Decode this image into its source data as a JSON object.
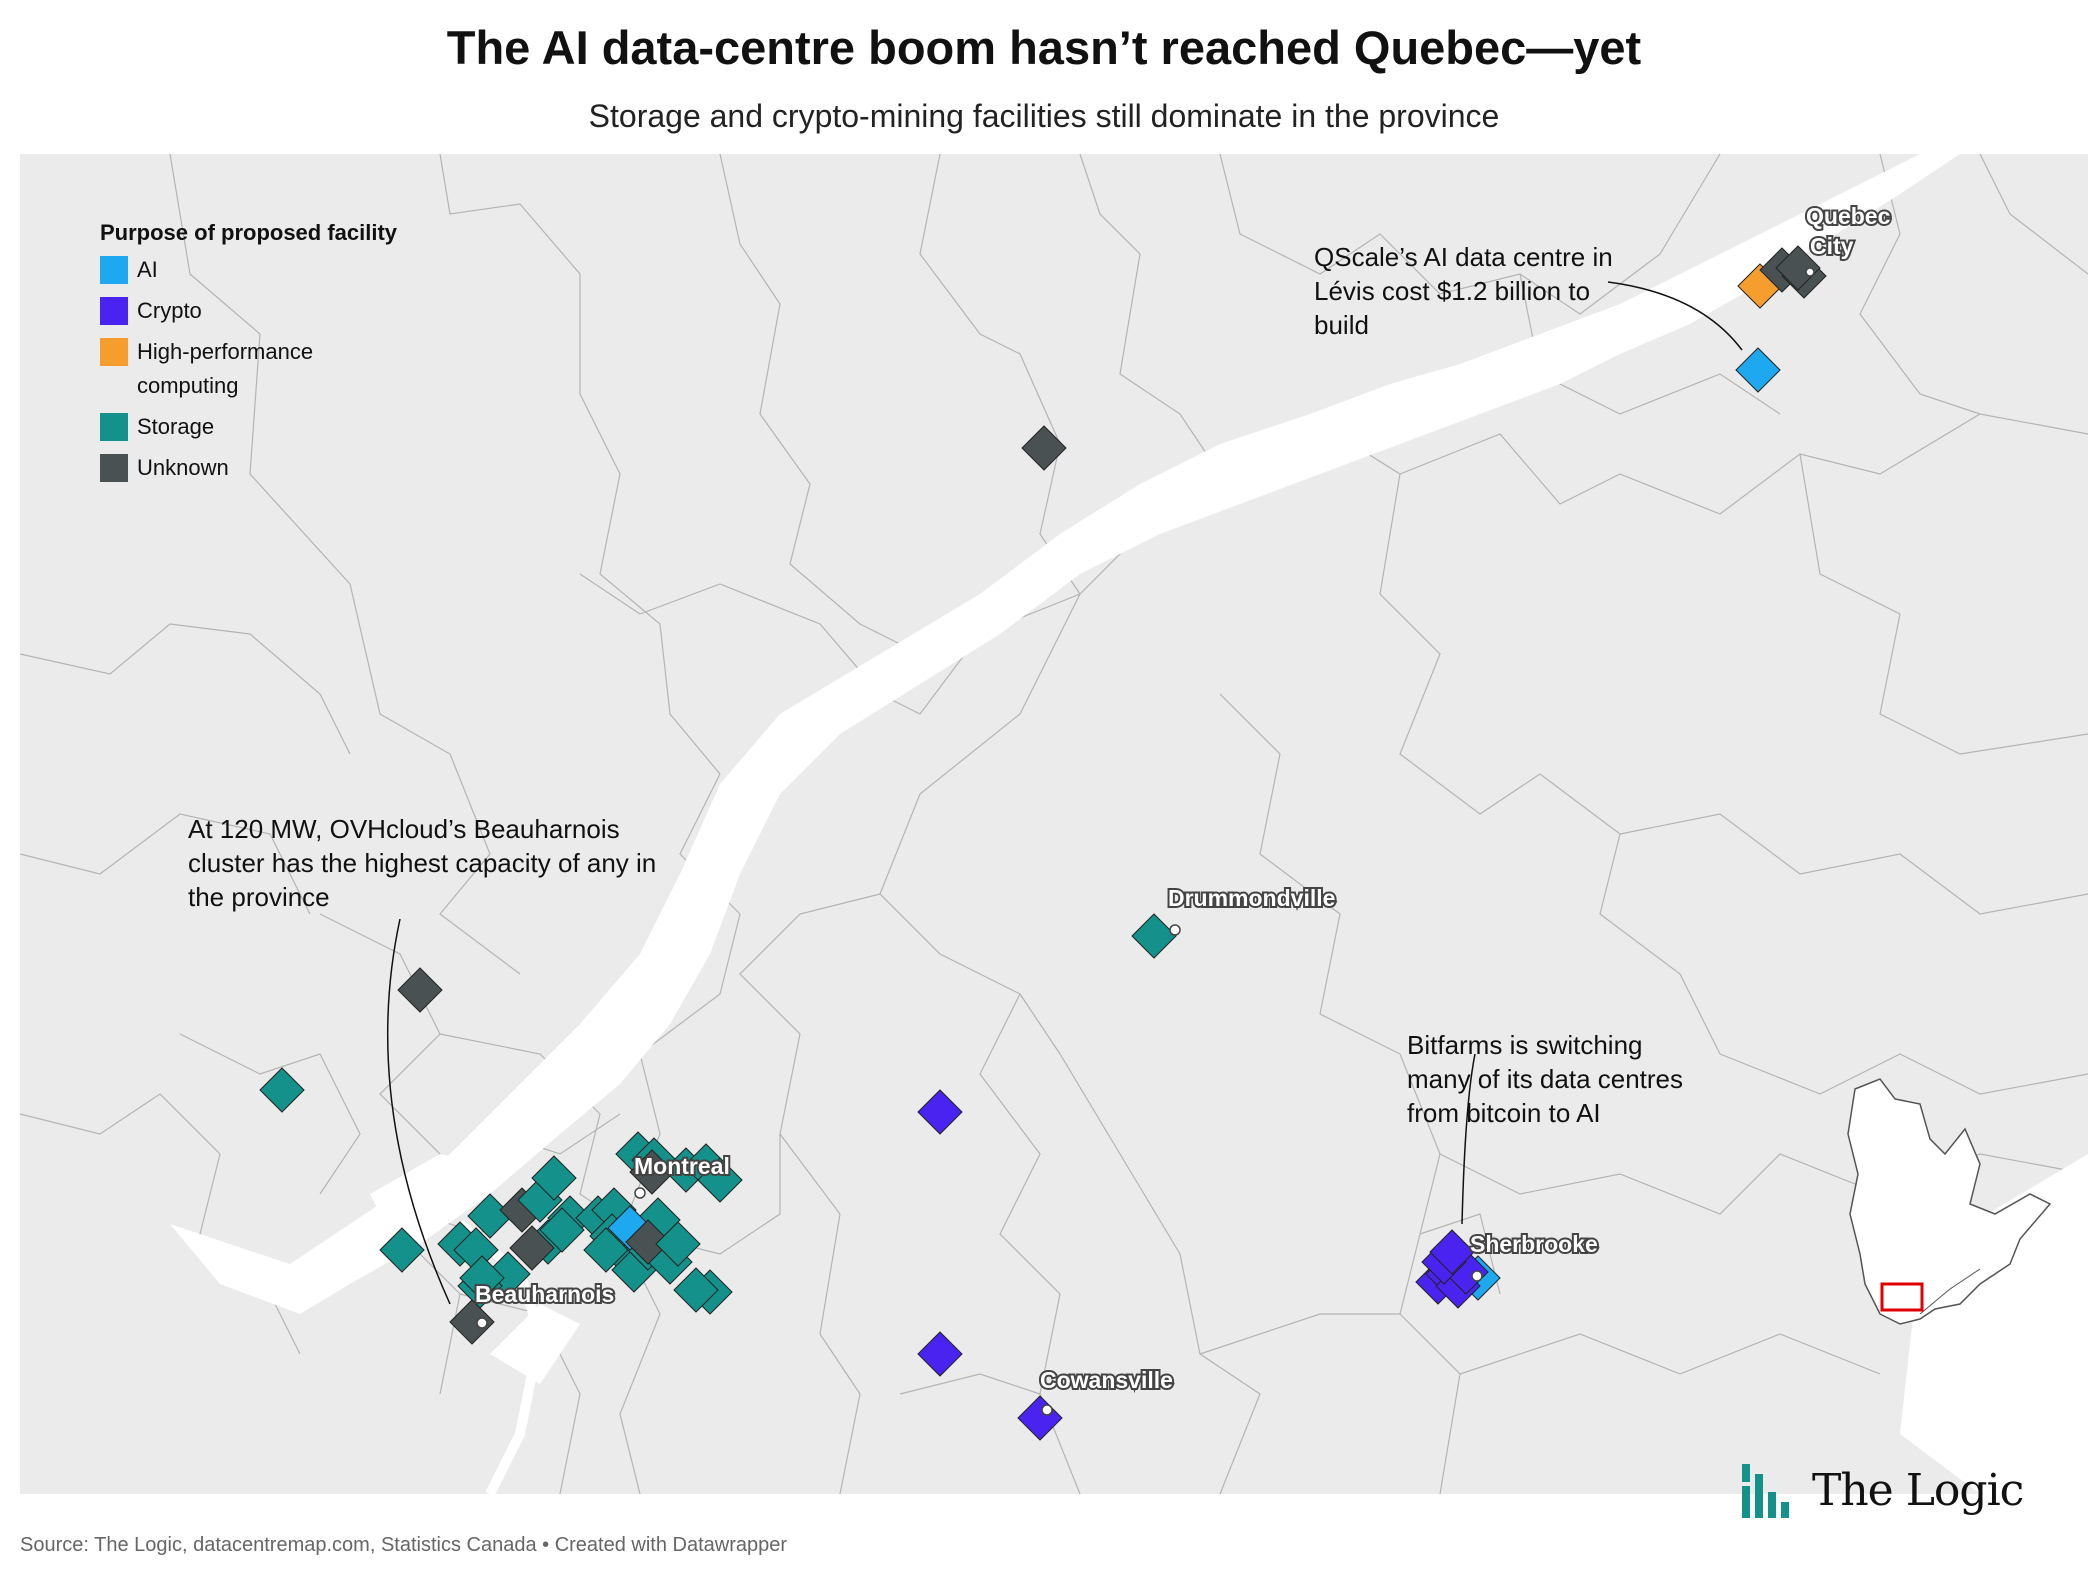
{
  "title": "The AI data-centre boom hasn’t reached Quebec—yet",
  "subtitle": "Storage and crypto-mining facilities still dominate in the province",
  "legend": {
    "title": "Purpose of proposed facility",
    "items": [
      {
        "label": "AI",
        "color": "#1ea8f0"
      },
      {
        "label": "Crypto",
        "color": "#4a23f0"
      },
      {
        "label": "High-performance computing",
        "color": "#f59e2e"
      },
      {
        "label": "Storage",
        "color": "#13918a"
      },
      {
        "label": "Unknown",
        "color": "#4a5152"
      }
    ]
  },
  "cities": [
    {
      "name": "Quebec City"
    },
    {
      "name": "Drummondville"
    },
    {
      "name": "Montreal"
    },
    {
      "name": "Sherbrooke"
    },
    {
      "name": "Beauharnois"
    },
    {
      "name": "Cowansville"
    }
  ],
  "annotations": {
    "qscale": "QScale’s AI data centre in Lévis cost $1.2 billion to build",
    "ovh": "At 120 MW, OVHcloud’s Beauharnois cluster has the highest capacity of any in the province",
    "bitfarms": "Bitfarms is switching many of its data centres from bitcoin to AI"
  },
  "source": "Source: The Logic, datacentremap.com, Statistics Canada • Created with Datawrapper",
  "brand": "The Logic",
  "colors": {
    "land": "#ebebeb",
    "border": "#b4b4b4",
    "water": "#ffffff",
    "inset_highlight": "#e00000"
  }
}
